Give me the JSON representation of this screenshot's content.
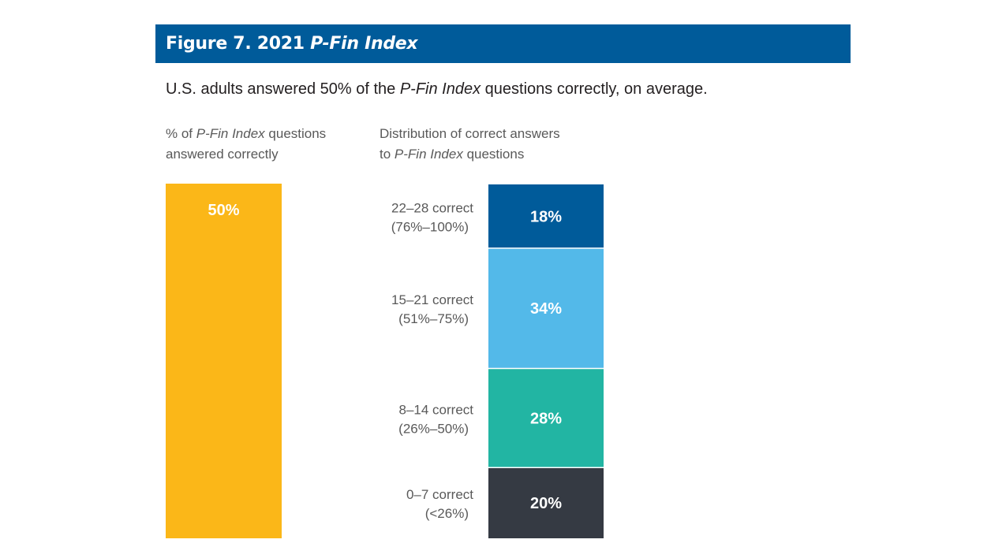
{
  "title": {
    "prefix": "Figure 7. 2021 ",
    "emphasis": "P-Fin Index"
  },
  "subtitle": {
    "before": "U.S. adults answered 50% of the ",
    "emphasis": "P-Fin Index",
    "after": " questions correctly, on average."
  },
  "left_header": {
    "before": "% of ",
    "emphasis": "P-Fin Index",
    "line1_after": " questions",
    "line2": "answered correctly"
  },
  "right_header": {
    "line1": "Distribution of correct answers",
    "line2_before": "to ",
    "emphasis": "P-Fin Index",
    "line2_after": " questions"
  },
  "chart_data": [
    {
      "type": "bar",
      "title": "% of P-Fin Index questions answered correctly",
      "values": [
        50
      ],
      "labels": [
        "50%"
      ],
      "color": "#fbb718"
    },
    {
      "type": "bar",
      "stacked": true,
      "title": "Distribution of correct answers to P-Fin Index questions",
      "series": [
        {
          "category": "22–28 correct",
          "range": "(76%–100%)",
          "value": 18,
          "label": "18%",
          "color": "#005b9a"
        },
        {
          "category": "15–21 correct",
          "range": "(51%–75%)",
          "value": 34,
          "label": "34%",
          "color": "#53b9e9"
        },
        {
          "category": "8–14 correct",
          "range": "(26%–50%)",
          "value": 28,
          "label": "28%",
          "color": "#22b5a3"
        },
        {
          "category": "0–7 correct",
          "range": "(<26%)",
          "value": 20,
          "label": "20%",
          "color": "#353a43"
        }
      ]
    }
  ]
}
